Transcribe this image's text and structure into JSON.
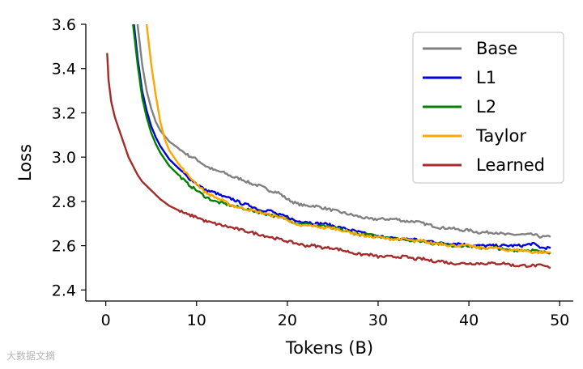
{
  "chart_data": {
    "type": "line",
    "title": "",
    "xlabel": "Tokens (B)",
    "ylabel": "Loss",
    "xlim": [
      -2.2,
      51.5
    ],
    "ylim": [
      2.35,
      3.6
    ],
    "xticks": [
      0,
      10,
      20,
      30,
      40,
      50
    ],
    "yticks": [
      2.4,
      2.6,
      2.8,
      3.0,
      3.2,
      3.4,
      3.6
    ],
    "xtick_labels": [
      "0",
      "10",
      "20",
      "30",
      "40",
      "50"
    ],
    "ytick_labels": [
      "2.4",
      "2.6",
      "2.8",
      "3.0",
      "3.2",
      "3.4",
      "3.6"
    ],
    "grid": false,
    "legend_position": "top-right",
    "series": [
      {
        "name": "Base",
        "color": "#808080",
        "x": [
          3.5,
          4,
          4.5,
          5,
          5.5,
          6,
          7,
          8,
          9,
          10,
          11,
          12,
          13,
          14,
          15,
          16,
          17,
          18,
          19,
          20,
          21,
          22,
          23,
          24,
          25,
          26,
          27,
          28,
          29,
          30,
          31,
          32,
          33,
          34,
          35,
          36,
          37,
          38,
          39,
          40,
          41,
          42,
          43,
          44,
          45,
          46,
          47,
          48,
          49
        ],
        "y": [
          3.6,
          3.42,
          3.3,
          3.22,
          3.16,
          3.12,
          3.07,
          3.04,
          3.01,
          2.99,
          2.96,
          2.94,
          2.93,
          2.91,
          2.9,
          2.88,
          2.87,
          2.85,
          2.84,
          2.81,
          2.79,
          2.78,
          2.78,
          2.77,
          2.76,
          2.75,
          2.74,
          2.73,
          2.72,
          2.72,
          2.72,
          2.72,
          2.71,
          2.71,
          2.7,
          2.69,
          2.68,
          2.68,
          2.67,
          2.67,
          2.66,
          2.66,
          2.66,
          2.65,
          2.65,
          2.65,
          2.65,
          2.64,
          2.64
        ]
      },
      {
        "name": "L1",
        "color": "#0000dd",
        "x": [
          3.1,
          3.5,
          4,
          4.5,
          5,
          5.5,
          6,
          7,
          8,
          9,
          10,
          11,
          12,
          13,
          14,
          15,
          16,
          17,
          18,
          19,
          20,
          21,
          22,
          23,
          24,
          25,
          26,
          27,
          28,
          29,
          30,
          31,
          32,
          33,
          34,
          35,
          36,
          37,
          38,
          39,
          40,
          41,
          42,
          43,
          44,
          45,
          46,
          47,
          48,
          49
        ],
        "y": [
          3.6,
          3.45,
          3.3,
          3.21,
          3.14,
          3.09,
          3.05,
          2.99,
          2.95,
          2.91,
          2.88,
          2.85,
          2.84,
          2.82,
          2.81,
          2.79,
          2.78,
          2.76,
          2.76,
          2.74,
          2.73,
          2.71,
          2.71,
          2.7,
          2.7,
          2.69,
          2.68,
          2.67,
          2.66,
          2.65,
          2.64,
          2.64,
          2.63,
          2.63,
          2.63,
          2.62,
          2.62,
          2.61,
          2.61,
          2.61,
          2.6,
          2.6,
          2.6,
          2.6,
          2.6,
          2.6,
          2.6,
          2.61,
          2.59,
          2.59
        ]
      },
      {
        "name": "L2",
        "color": "#008000",
        "x": [
          3,
          3.5,
          4,
          4.5,
          5,
          5.5,
          6,
          7,
          8,
          9,
          10,
          11,
          12,
          13,
          14,
          15,
          16,
          17,
          18,
          19,
          20,
          21,
          22,
          23,
          24,
          25,
          26,
          27,
          28,
          29,
          30,
          31,
          32,
          33,
          34,
          35,
          36,
          37,
          38,
          39,
          40,
          41,
          42,
          43,
          44,
          45,
          46,
          47,
          48,
          49
        ],
        "y": [
          3.6,
          3.42,
          3.27,
          3.18,
          3.11,
          3.06,
          3.02,
          2.96,
          2.92,
          2.88,
          2.85,
          2.82,
          2.8,
          2.79,
          2.78,
          2.77,
          2.76,
          2.75,
          2.74,
          2.73,
          2.72,
          2.7,
          2.7,
          2.69,
          2.69,
          2.68,
          2.67,
          2.66,
          2.65,
          2.65,
          2.64,
          2.64,
          2.63,
          2.63,
          2.62,
          2.62,
          2.61,
          2.61,
          2.6,
          2.6,
          2.6,
          2.59,
          2.59,
          2.59,
          2.58,
          2.58,
          2.58,
          2.58,
          2.57,
          2.57
        ]
      },
      {
        "name": "Taylor",
        "color": "#ffa500",
        "x": [
          4.5,
          5,
          5.5,
          6,
          6.5,
          7,
          8,
          9,
          10,
          11,
          12,
          13,
          14,
          15,
          16,
          17,
          18,
          19,
          20,
          21,
          22,
          23,
          24,
          25,
          26,
          27,
          28,
          29,
          30,
          31,
          32,
          33,
          34,
          35,
          36,
          37,
          38,
          39,
          40,
          41,
          42,
          43,
          44,
          45,
          46,
          47,
          48,
          49
        ],
        "y": [
          3.6,
          3.42,
          3.28,
          3.16,
          3.08,
          3.03,
          2.97,
          2.92,
          2.88,
          2.84,
          2.82,
          2.8,
          2.78,
          2.77,
          2.76,
          2.75,
          2.74,
          2.73,
          2.72,
          2.69,
          2.69,
          2.69,
          2.68,
          2.68,
          2.67,
          2.66,
          2.65,
          2.64,
          2.64,
          2.63,
          2.63,
          2.63,
          2.62,
          2.62,
          2.61,
          2.61,
          2.6,
          2.6,
          2.6,
          2.59,
          2.59,
          2.59,
          2.58,
          2.58,
          2.58,
          2.57,
          2.57,
          2.57
        ]
      },
      {
        "name": "Learned",
        "color": "#a52a2a",
        "x": [
          0.15,
          0.3,
          0.6,
          1,
          1.5,
          2,
          2.5,
          3,
          3.5,
          4,
          5,
          6,
          7,
          8,
          9,
          10,
          11,
          12,
          13,
          14,
          15,
          16,
          17,
          18,
          19,
          20,
          21,
          22,
          23,
          24,
          25,
          26,
          27,
          28,
          29,
          30,
          31,
          32,
          33,
          34,
          35,
          36,
          37,
          38,
          39,
          40,
          41,
          42,
          43,
          44,
          45,
          46,
          47,
          48,
          49
        ],
        "y": [
          3.47,
          3.35,
          3.25,
          3.18,
          3.12,
          3.06,
          3.0,
          2.96,
          2.92,
          2.89,
          2.85,
          2.81,
          2.78,
          2.76,
          2.74,
          2.73,
          2.71,
          2.7,
          2.69,
          2.68,
          2.67,
          2.66,
          2.65,
          2.64,
          2.63,
          2.62,
          2.61,
          2.6,
          2.6,
          2.59,
          2.59,
          2.58,
          2.57,
          2.56,
          2.56,
          2.55,
          2.55,
          2.55,
          2.55,
          2.54,
          2.54,
          2.53,
          2.53,
          2.52,
          2.52,
          2.52,
          2.52,
          2.52,
          2.52,
          2.52,
          2.51,
          2.51,
          2.51,
          2.51,
          2.5
        ]
      }
    ]
  },
  "watermark": {
    "text": "大数据文摘"
  }
}
